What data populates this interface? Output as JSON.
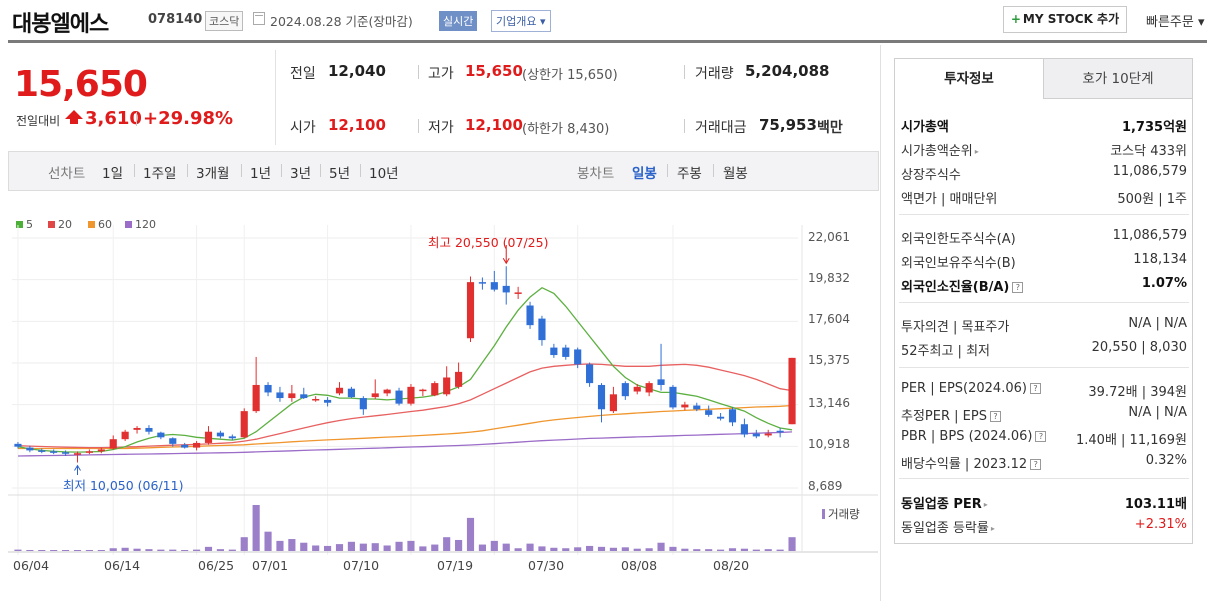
{
  "header": {
    "stock_name": "대봉엘에스",
    "stock_code": "078140",
    "market": "코스닥",
    "date_text": "2024.08.28 기준(장마감)",
    "realtime_label": "실시간",
    "company_info_label": "기업개요 ▾",
    "mystock_label": "MY STOCK 추가",
    "quick_order_label": "빠른주문 ▾"
  },
  "price": {
    "current": "15,650",
    "diff_label": "전일대비",
    "diff_value": "3,610",
    "diff_pct": "+29.98%",
    "prev_close_label": "전일",
    "prev_close": "12,040",
    "high_label": "고가",
    "high": "15,650",
    "upper_limit": "(상한가 15,650)",
    "volume_label": "거래량",
    "volume": "5,204,088",
    "open_label": "시가",
    "open": "12,100",
    "low_label": "저가",
    "low": "12,100",
    "lower_limit": "(하한가 8,430)",
    "trade_value_label": "거래대금",
    "trade_value": "75,953",
    "trade_value_unit": "백만"
  },
  "chart_tabs": {
    "line_label": "선차트",
    "line_items": [
      "1일",
      "1주일",
      "3개월",
      "1년",
      "3년",
      "5년",
      "10년"
    ],
    "candle_label": "봉차트",
    "candle_items": [
      "일봉",
      "주봉",
      "월봉"
    ],
    "active_candle": "일봉"
  },
  "chart_data": {
    "type": "candlestick",
    "legend": [
      {
        "name": "5",
        "color": "#4caf38"
      },
      {
        "name": "20",
        "color": "#e04848"
      },
      {
        "name": "60",
        "color": "#f0962e"
      },
      {
        "name": "120",
        "color": "#9b6cc8"
      }
    ],
    "y_ticks": [
      "22,061",
      "19,832",
      "17,604",
      "15,375",
      "13,146",
      "10,918",
      "8,689"
    ],
    "x_ticks": [
      "06/04",
      "06/14",
      "06/25",
      "07/01",
      "07/10",
      "07/19",
      "07/30",
      "08/08",
      "08/20"
    ],
    "annotation_high": "최고 20,550 (07/25)",
    "annotation_low": "최저 10,050 (06/11)",
    "volume_label": "거래량",
    "candles": [
      {
        "o": 11050,
        "c": 10900,
        "h": 11150,
        "l": 10800,
        "v": 0.03
      },
      {
        "o": 10850,
        "c": 10700,
        "h": 10950,
        "l": 10600,
        "v": 0.02
      },
      {
        "o": 10700,
        "c": 10650,
        "h": 10800,
        "l": 10550,
        "v": 0.02
      },
      {
        "o": 10650,
        "c": 10620,
        "h": 10750,
        "l": 10500,
        "v": 0.02
      },
      {
        "o": 10600,
        "c": 10550,
        "h": 10700,
        "l": 10400,
        "v": 0.02
      },
      {
        "o": 10500,
        "c": 10550,
        "h": 10650,
        "l": 10050,
        "v": 0.02
      },
      {
        "o": 10600,
        "c": 10650,
        "h": 10750,
        "l": 10500,
        "v": 0.02
      },
      {
        "o": 10650,
        "c": 10750,
        "h": 10850,
        "l": 10550,
        "v": 0.02
      },
      {
        "o": 10800,
        "c": 11300,
        "h": 11500,
        "l": 10750,
        "v": 0.06
      },
      {
        "o": 11300,
        "c": 11700,
        "h": 11800,
        "l": 11200,
        "v": 0.07
      },
      {
        "o": 11800,
        "c": 11900,
        "h": 12000,
        "l": 11600,
        "v": 0.05
      },
      {
        "o": 11900,
        "c": 11700,
        "h": 12050,
        "l": 11550,
        "v": 0.04
      },
      {
        "o": 11650,
        "c": 11400,
        "h": 11700,
        "l": 11300,
        "v": 0.03
      },
      {
        "o": 11350,
        "c": 11050,
        "h": 11400,
        "l": 10900,
        "v": 0.03
      },
      {
        "o": 11000,
        "c": 10850,
        "h": 11100,
        "l": 10800,
        "v": 0.02
      },
      {
        "o": 10850,
        "c": 11100,
        "h": 11200,
        "l": 10700,
        "v": 0.03
      },
      {
        "o": 11100,
        "c": 11700,
        "h": 12000,
        "l": 11000,
        "v": 0.09
      },
      {
        "o": 11650,
        "c": 11450,
        "h": 11750,
        "l": 11350,
        "v": 0.04
      },
      {
        "o": 11450,
        "c": 11350,
        "h": 11550,
        "l": 11250,
        "v": 0.03
      },
      {
        "o": 11400,
        "c": 12800,
        "h": 12950,
        "l": 11350,
        "v": 0.3
      },
      {
        "o": 12800,
        "c": 14200,
        "h": 15700,
        "l": 12700,
        "v": 1.0
      },
      {
        "o": 14200,
        "c": 13800,
        "h": 14350,
        "l": 13600,
        "v": 0.42
      },
      {
        "o": 13800,
        "c": 13500,
        "h": 14100,
        "l": 13300,
        "v": 0.22
      },
      {
        "o": 13500,
        "c": 13750,
        "h": 14200,
        "l": 13300,
        "v": 0.26
      },
      {
        "o": 13700,
        "c": 13500,
        "h": 14050,
        "l": 13450,
        "v": 0.18
      },
      {
        "o": 13450,
        "c": 13450,
        "h": 13600,
        "l": 13300,
        "v": 0.12
      },
      {
        "o": 13400,
        "c": 13250,
        "h": 13550,
        "l": 13050,
        "v": 0.11
      },
      {
        "o": 13750,
        "c": 14050,
        "h": 14350,
        "l": 13650,
        "v": 0.15
      },
      {
        "o": 14000,
        "c": 13550,
        "h": 14100,
        "l": 13500,
        "v": 0.2
      },
      {
        "o": 13500,
        "c": 12900,
        "h": 13600,
        "l": 12600,
        "v": 0.16
      },
      {
        "o": 13550,
        "c": 13750,
        "h": 14500,
        "l": 13450,
        "v": 0.17
      },
      {
        "o": 13750,
        "c": 13950,
        "h": 14000,
        "l": 13600,
        "v": 0.12
      },
      {
        "o": 13900,
        "c": 13200,
        "h": 14050,
        "l": 13100,
        "v": 0.2
      },
      {
        "o": 13200,
        "c": 14100,
        "h": 14250,
        "l": 13100,
        "v": 0.22
      },
      {
        "o": 13900,
        "c": 13950,
        "h": 14000,
        "l": 13600,
        "v": 0.1
      },
      {
        "o": 13650,
        "c": 14300,
        "h": 14400,
        "l": 13600,
        "v": 0.14
      },
      {
        "o": 13700,
        "c": 14600,
        "h": 15200,
        "l": 13600,
        "v": 0.3
      },
      {
        "o": 14100,
        "c": 14900,
        "h": 15400,
        "l": 14000,
        "v": 0.24
      },
      {
        "o": 16700,
        "c": 19700,
        "h": 20000,
        "l": 16500,
        "v": 0.72
      },
      {
        "o": 19700,
        "c": 19650,
        "h": 19950,
        "l": 19300,
        "v": 0.14
      },
      {
        "o": 19700,
        "c": 19300,
        "h": 20300,
        "l": 19200,
        "v": 0.22
      },
      {
        "o": 19500,
        "c": 19150,
        "h": 20550,
        "l": 18500,
        "v": 0.16
      },
      {
        "o": 19150,
        "c": 19150,
        "h": 19450,
        "l": 18800,
        "v": 0.06
      },
      {
        "o": 18450,
        "c": 17400,
        "h": 18650,
        "l": 17200,
        "v": 0.16
      },
      {
        "o": 17750,
        "c": 16600,
        "h": 17900,
        "l": 16300,
        "v": 0.1
      },
      {
        "o": 16200,
        "c": 15800,
        "h": 16400,
        "l": 15650,
        "v": 0.07
      },
      {
        "o": 16200,
        "c": 15700,
        "h": 16350,
        "l": 15550,
        "v": 0.06
      },
      {
        "o": 16100,
        "c": 15300,
        "h": 16200,
        "l": 15100,
        "v": 0.08
      },
      {
        "o": 15300,
        "c": 14300,
        "h": 15400,
        "l": 14100,
        "v": 0.11
      },
      {
        "o": 14200,
        "c": 12900,
        "h": 14300,
        "l": 12200,
        "v": 0.09
      },
      {
        "o": 12800,
        "c": 13700,
        "h": 14100,
        "l": 12700,
        "v": 0.07
      },
      {
        "o": 14300,
        "c": 13600,
        "h": 14400,
        "l": 13400,
        "v": 0.08
      },
      {
        "o": 13850,
        "c": 14100,
        "h": 14250,
        "l": 13700,
        "v": 0.05
      },
      {
        "o": 13800,
        "c": 14300,
        "h": 14400,
        "l": 13600,
        "v": 0.06
      },
      {
        "o": 14500,
        "c": 14200,
        "h": 16400,
        "l": 13900,
        "v": 0.18
      },
      {
        "o": 14100,
        "c": 13000,
        "h": 14200,
        "l": 12900,
        "v": 0.09
      },
      {
        "o": 13000,
        "c": 13150,
        "h": 13300,
        "l": 12850,
        "v": 0.05
      },
      {
        "o": 13100,
        "c": 12900,
        "h": 13250,
        "l": 12800,
        "v": 0.04
      },
      {
        "o": 12850,
        "c": 12600,
        "h": 13100,
        "l": 12500,
        "v": 0.04
      },
      {
        "o": 12500,
        "c": 12400,
        "h": 12700,
        "l": 12300,
        "v": 0.03
      },
      {
        "o": 12900,
        "c": 12200,
        "h": 13000,
        "l": 12000,
        "v": 0.06
      },
      {
        "o": 12100,
        "c": 11550,
        "h": 12400,
        "l": 11400,
        "v": 0.05
      },
      {
        "o": 11600,
        "c": 11450,
        "h": 11800,
        "l": 11350,
        "v": 0.03
      },
      {
        "o": 11500,
        "c": 11600,
        "h": 11800,
        "l": 11400,
        "v": 0.04
      },
      {
        "o": 11750,
        "c": 11700,
        "h": 11900,
        "l": 11400,
        "v": 0.03
      },
      {
        "o": 12100,
        "c": 15650,
        "h": 15650,
        "l": 12100,
        "v": 0.3
      }
    ],
    "ma5": [
      10900,
      10780,
      10700,
      10650,
      10620,
      10610,
      10620,
      10640,
      10750,
      10900,
      11150,
      11350,
      11500,
      11550,
      11500,
      11400,
      11350,
      11300,
      11250,
      11350,
      11700,
      12200,
      12700,
      13200,
      13550,
      13700,
      13650,
      13500,
      13500,
      13450,
      13450,
      13400,
      13450,
      13500,
      13550,
      13650,
      13850,
      14100,
      14500,
      15400,
      16300,
      17300,
      18200,
      18900,
      19400,
      19100,
      18400,
      17600,
      16800,
      16000,
      15200,
      14600,
      14200,
      14000,
      13800,
      13800,
      13700,
      13600,
      13400,
      13200,
      13000,
      12800,
      12450,
      12150,
      11900,
      11800
    ],
    "ma20": [
      10950,
      10930,
      10910,
      10890,
      10870,
      10860,
      10850,
      10850,
      10860,
      10880,
      10900,
      10930,
      10950,
      10980,
      11000,
      11020,
      11050,
      11080,
      11120,
      11200,
      11300,
      11450,
      11600,
      11750,
      11900,
      12050,
      12180,
      12300,
      12400,
      12480,
      12550,
      12620,
      12700,
      12780,
      12850,
      12950,
      13050,
      13200,
      13400,
      13700,
      14000,
      14300,
      14600,
      14900,
      15100,
      15200,
      15250,
      15300,
      15320,
      15300,
      15250,
      15200,
      15200,
      15200,
      15250,
      15280,
      15300,
      15250,
      15150,
      15000,
      14850,
      14700,
      14500,
      14250,
      14000,
      13900
    ],
    "ma60": [
      10800,
      10800,
      10800,
      10800,
      10800,
      10800,
      10800,
      10800,
      10800,
      10800,
      10820,
      10840,
      10860,
      10880,
      10900,
      10920,
      10940,
      10960,
      10980,
      11000,
      11040,
      11080,
      11120,
      11160,
      11200,
      11230,
      11260,
      11290,
      11320,
      11350,
      11380,
      11410,
      11440,
      11470,
      11500,
      11540,
      11580,
      11620,
      11680,
      11750,
      11850,
      11950,
      12050,
      12150,
      12250,
      12330,
      12400,
      12460,
      12520,
      12570,
      12620,
      12660,
      12700,
      12740,
      12780,
      12810,
      12840,
      12870,
      12900,
      12930,
      12960,
      12990,
      13020,
      13040,
      13060,
      13100
    ],
    "ma120": [
      10400,
      10410,
      10420,
      10430,
      10440,
      10450,
      10460,
      10470,
      10480,
      10490,
      10500,
      10510,
      10520,
      10530,
      10540,
      10550,
      10560,
      10570,
      10580,
      10600,
      10620,
      10640,
      10660,
      10680,
      10700,
      10720,
      10740,
      10760,
      10780,
      10800,
      10820,
      10840,
      10860,
      10880,
      10900,
      10920,
      10940,
      10960,
      10990,
      11020,
      11060,
      11100,
      11140,
      11180,
      11220,
      11250,
      11280,
      11310,
      11340,
      11360,
      11380,
      11400,
      11420,
      11440,
      11460,
      11480,
      11500,
      11520,
      11540,
      11560,
      11580,
      11600,
      11620,
      11640,
      11660,
      11690
    ]
  },
  "invest_tabs": [
    "투자정보",
    "호가 10단계"
  ],
  "invest_info": {
    "group1": [
      {
        "label": "시가총액",
        "value": "1,735억원",
        "bold": true
      },
      {
        "label": "시가총액순위",
        "value": "코스닥 433위",
        "arrow": true
      },
      {
        "label": "상장주식수",
        "value": "11,086,579"
      },
      {
        "label": "액면가 | 매매단위",
        "value": "500원 | 1주"
      }
    ],
    "group2": [
      {
        "label": "외국인한도주식수(A)",
        "value": "11,086,579"
      },
      {
        "label": "외국인보유주식수(B)",
        "value": "118,134"
      },
      {
        "label": "외국인소진율(B/A)",
        "value": "1.07%",
        "bold": true,
        "q": true
      }
    ],
    "group3": [
      {
        "label": "투자의견 | 목표주가",
        "value": "N/A | N/A"
      },
      {
        "label": "52주최고 | 최저",
        "value": "20,550 | 8,030"
      }
    ],
    "group4": [
      {
        "label": "PER | EPS(2024.06)",
        "value": "39.72배 | 394원",
        "q": true
      },
      {
        "label": "추정PER | EPS",
        "value": "N/A | N/A",
        "q": true
      },
      {
        "label": "PBR | BPS (2024.06)",
        "value": "1.40배 | 11,169원",
        "q": true
      },
      {
        "label": "배당수익률 | 2023.12",
        "value": "0.32%",
        "q": true
      }
    ],
    "group5": [
      {
        "label": "동일업종 PER",
        "value": "103.11배",
        "bold": true,
        "arrow": true
      },
      {
        "label": "동일업종 등락률",
        "value": "+2.31%",
        "red": true,
        "arrow": true
      }
    ]
  }
}
